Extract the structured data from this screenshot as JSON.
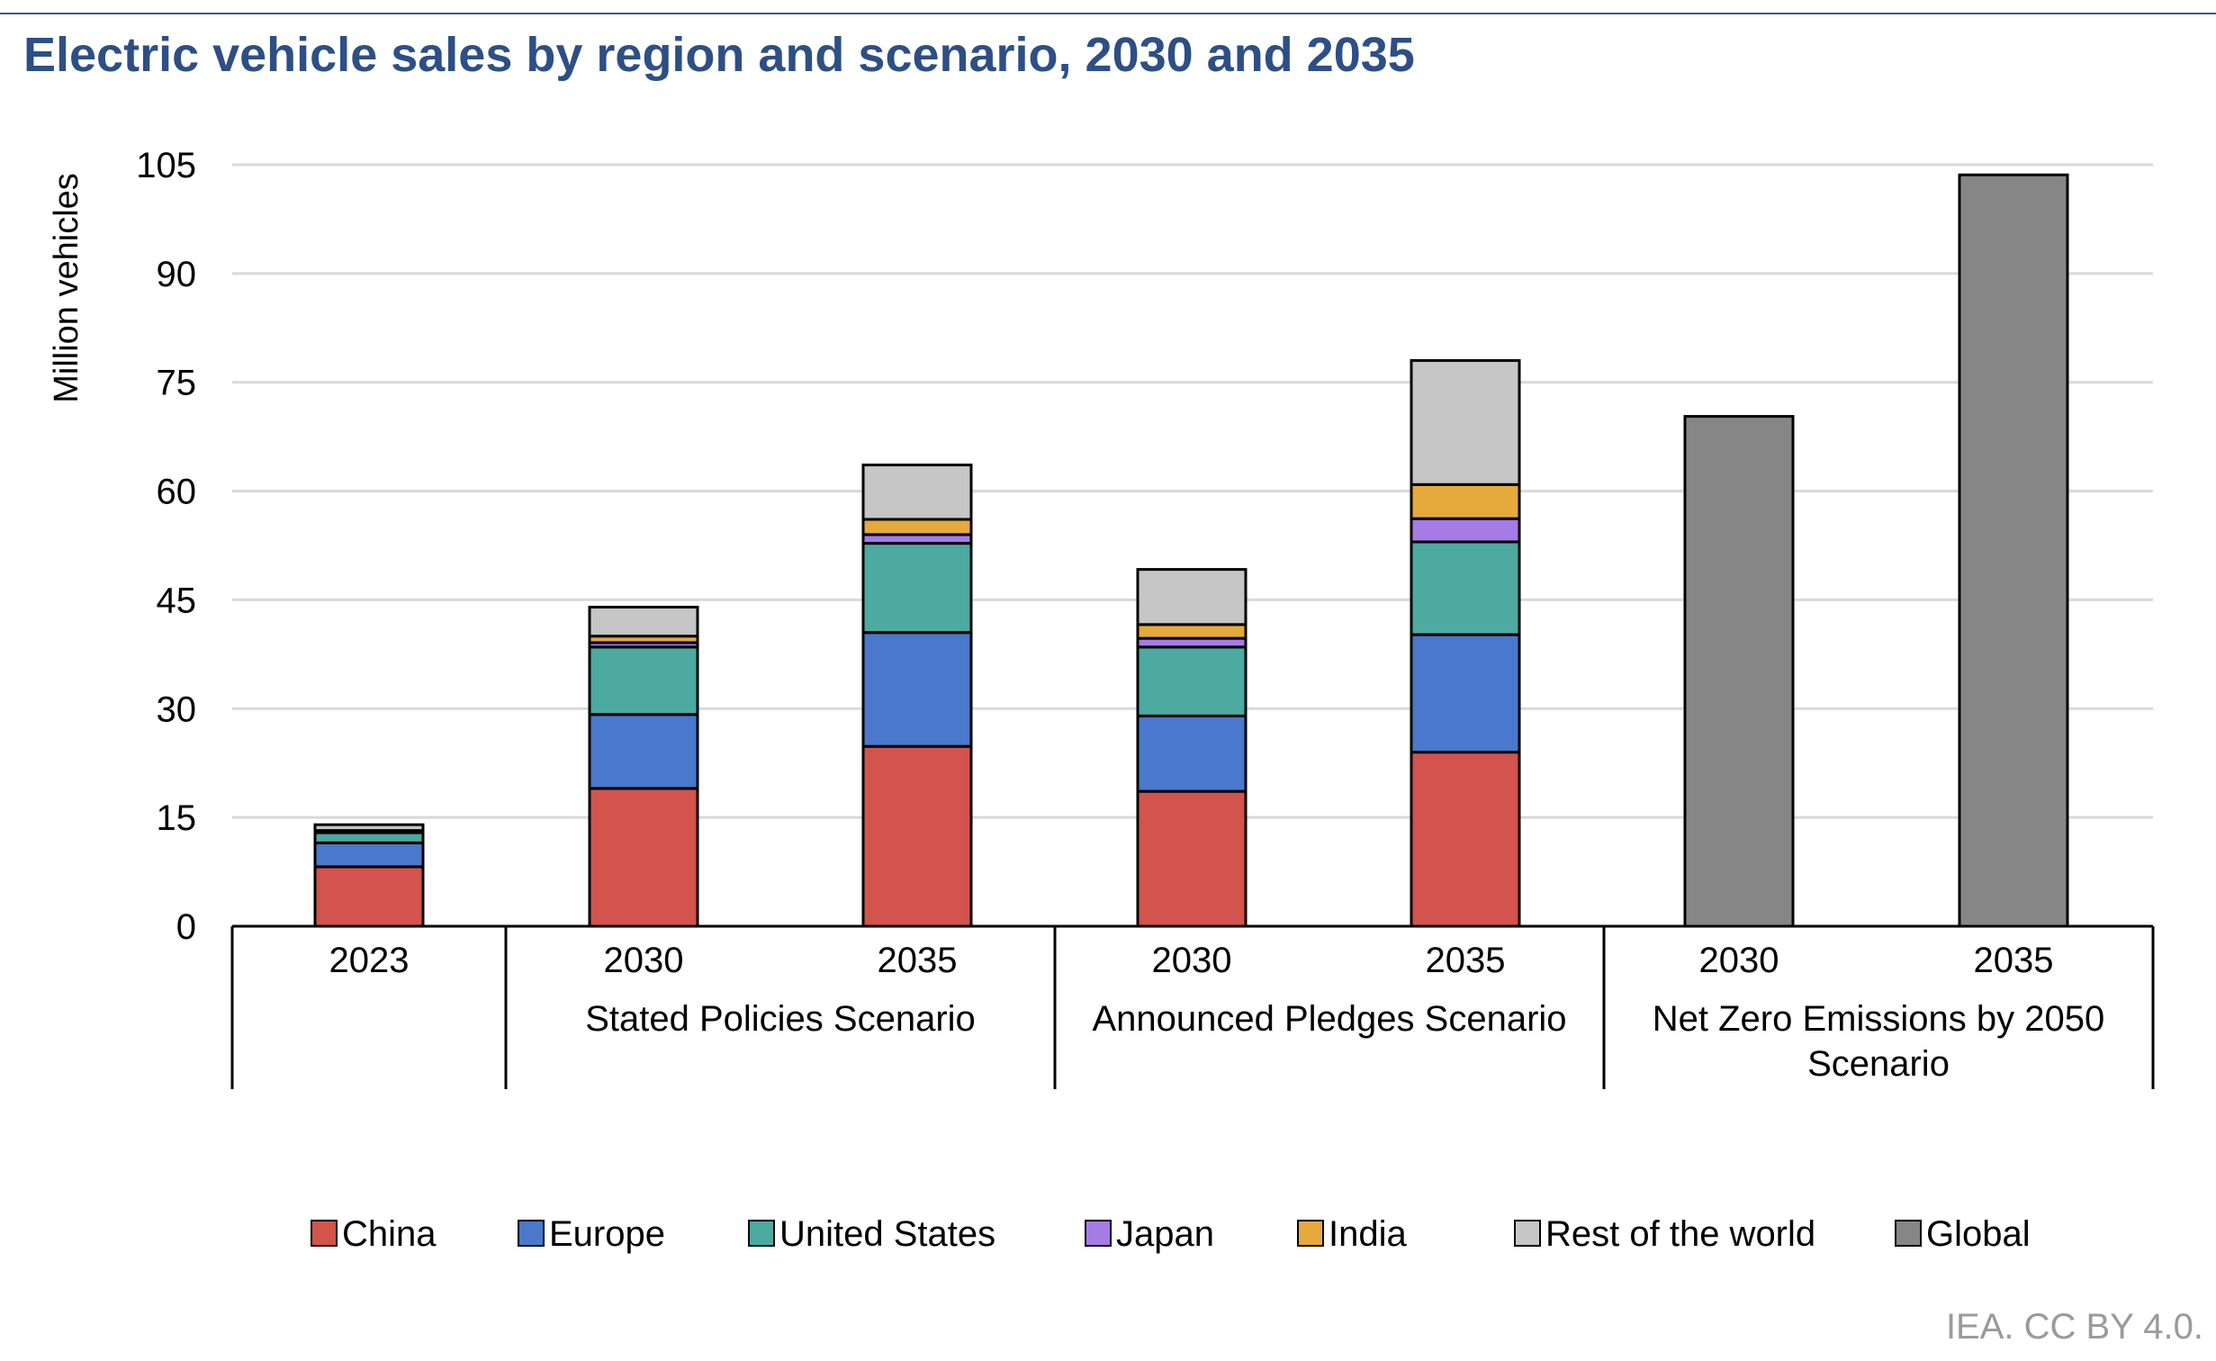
{
  "title": "Electric vehicle sales by region and scenario, 2030 and 2035",
  "credit": "IEA. CC BY 4.0.",
  "chart_data": {
    "type": "bar",
    "stacked": true,
    "ylabel": "Million vehicles",
    "ylim": [
      0,
      105
    ],
    "yticks": [
      0,
      15,
      30,
      45,
      60,
      75,
      90,
      105
    ],
    "grid": true,
    "legend_position": "bottom",
    "categories": [
      "2023",
      "2030",
      "2035",
      "2030",
      "2035",
      "2030",
      "2035"
    ],
    "groups": [
      {
        "label": "",
        "span": [
          0,
          0
        ]
      },
      {
        "label": "Stated Policies Scenario",
        "span": [
          1,
          2
        ]
      },
      {
        "label": "Announced Pledges Scenario",
        "span": [
          3,
          4
        ]
      },
      {
        "label": "Net Zero Emissions by 2050 Scenario",
        "lines": [
          "Net Zero Emissions by 2050",
          "Scenario"
        ],
        "span": [
          5,
          6
        ]
      }
    ],
    "series": [
      {
        "name": "China",
        "color": "#d2544c",
        "values": [
          8.2,
          19.0,
          24.8,
          18.6,
          24.0,
          0,
          0
        ]
      },
      {
        "name": "Europe",
        "color": "#4a78cc",
        "values": [
          3.3,
          10.2,
          15.7,
          10.4,
          16.2,
          0,
          0
        ]
      },
      {
        "name": "United States",
        "color": "#4caaa0",
        "values": [
          1.4,
          9.3,
          12.3,
          9.5,
          12.8,
          0,
          0
        ]
      },
      {
        "name": "Japan",
        "color": "#a57ce6",
        "values": [
          0.2,
          0.6,
          1.2,
          1.2,
          3.2,
          0,
          0
        ]
      },
      {
        "name": "India",
        "color": "#e6a93c",
        "values": [
          0.1,
          0.9,
          2.1,
          1.9,
          4.7,
          0,
          0
        ]
      },
      {
        "name": "Rest of the world",
        "color": "#c6c6c6",
        "values": [
          0.8,
          4.0,
          7.5,
          7.6,
          17.1,
          0,
          0
        ]
      },
      {
        "name": "Global",
        "color": "#868686",
        "values": [
          0,
          0,
          0,
          0,
          0,
          70.3,
          103.6
        ]
      }
    ]
  }
}
